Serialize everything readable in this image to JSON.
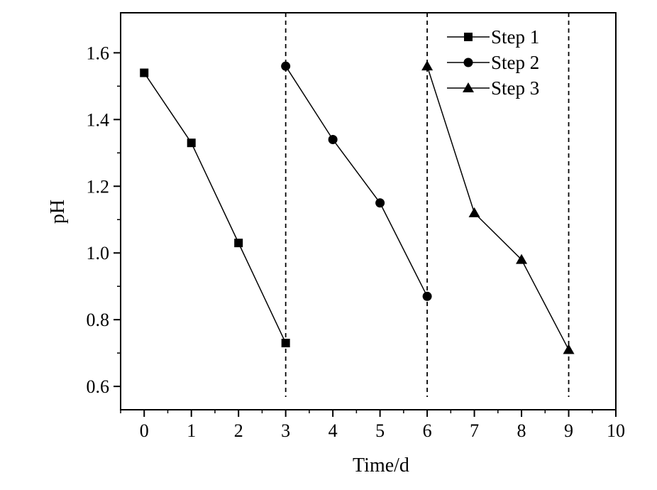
{
  "chart_data": {
    "type": "line",
    "title": "",
    "xlabel": "Time/d",
    "ylabel": "pH",
    "xlim": [
      -0.5,
      10
    ],
    "ylim": [
      0.53,
      1.72
    ],
    "x_ticks": [
      0,
      1,
      2,
      3,
      4,
      5,
      6,
      7,
      8,
      9,
      10
    ],
    "x_tick_labels": [
      "0",
      "1",
      "2",
      "3",
      "4",
      "5",
      "6",
      "7",
      "8",
      "9",
      "10"
    ],
    "y_ticks": [
      0.6,
      0.8,
      1.0,
      1.2,
      1.4,
      1.6
    ],
    "y_tick_labels": [
      "0.6",
      "0.8",
      "1.0",
      "1.2",
      "1.4",
      "1.6"
    ],
    "vertical_dashed_lines_at_x": [
      3,
      6,
      9
    ],
    "grid": false,
    "legend_position": "top-right",
    "series": [
      {
        "name": "Step 1",
        "marker": "square",
        "color": "#000000",
        "x": [
          0,
          1,
          2,
          3
        ],
        "y": [
          1.54,
          1.33,
          1.03,
          0.73
        ]
      },
      {
        "name": "Step 2",
        "marker": "circle",
        "color": "#000000",
        "x": [
          3,
          4,
          5,
          6
        ],
        "y": [
          1.56,
          1.34,
          1.15,
          0.87
        ]
      },
      {
        "name": "Step 3",
        "marker": "triangle",
        "color": "#000000",
        "x": [
          6,
          7,
          8,
          9
        ],
        "y": [
          1.56,
          1.12,
          0.98,
          0.71
        ]
      }
    ]
  }
}
